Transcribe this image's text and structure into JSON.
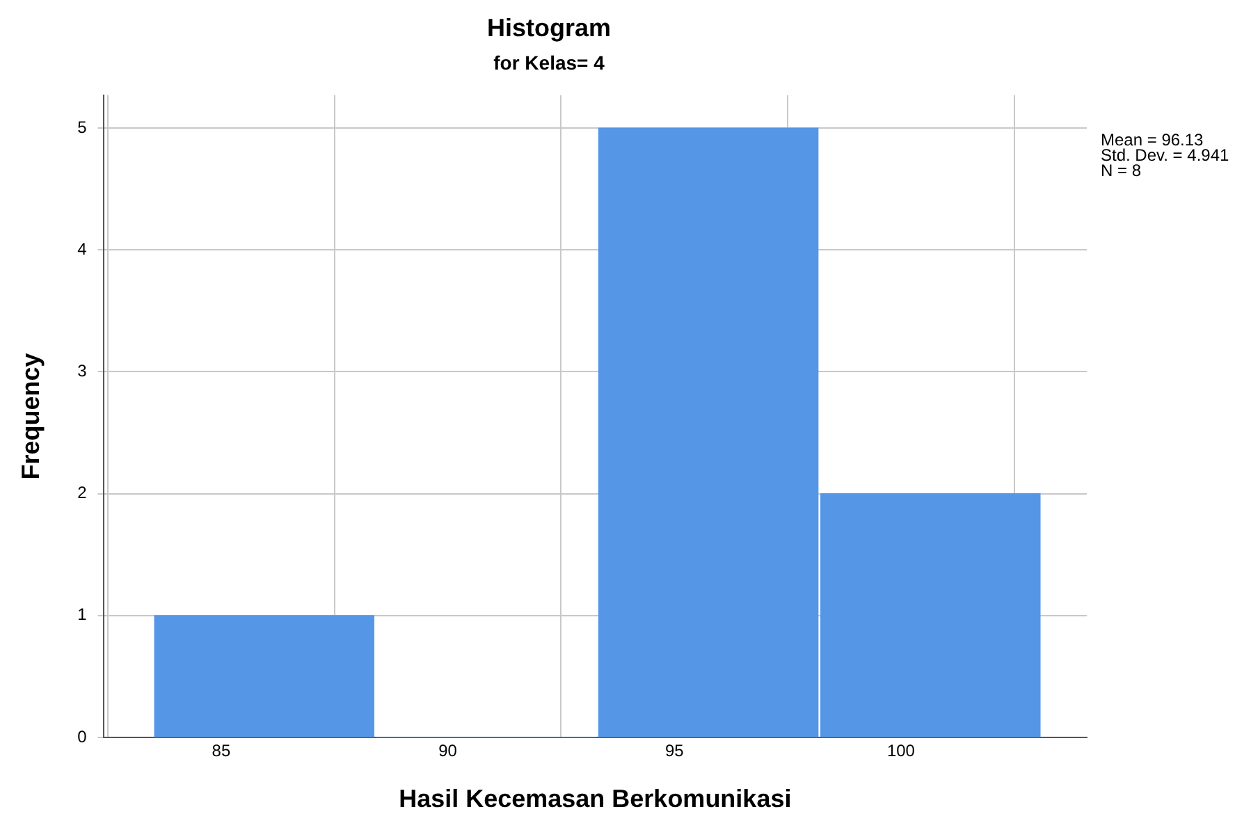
{
  "chart_data": {
    "type": "histogram",
    "title": "Histogram",
    "subtitle": "for Kelas= 4",
    "xlabel": "Hasil Kecemasan Berkomunikasi",
    "ylabel": "Frequency",
    "bins": [
      83.5,
      88.4,
      93.3,
      98.2,
      103.1
    ],
    "values": [
      1,
      0,
      5,
      2
    ],
    "color": "#5596e6",
    "xlim": [
      82.4,
      104.1
    ],
    "xticks": [
      85,
      90,
      95,
      100
    ],
    "ylim": [
      0,
      5.27
    ],
    "yticks": [
      0,
      1,
      2,
      3,
      4,
      5
    ],
    "grid": true,
    "legend": false,
    "annotations": [
      "Mean = 96.13",
      "Std. Dev. = 4.941",
      "N = 8"
    ]
  }
}
